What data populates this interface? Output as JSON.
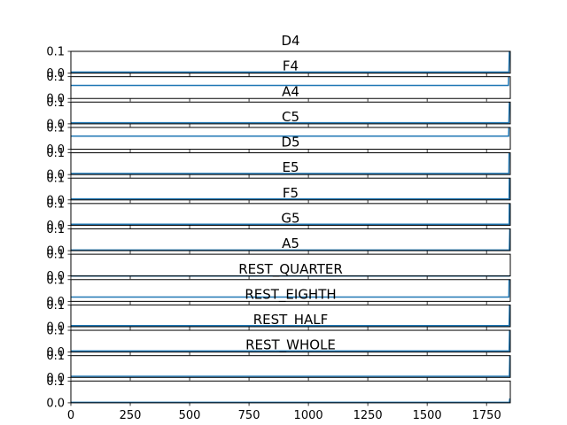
{
  "chart_data": {
    "type": "line",
    "xlim": [
      0,
      1850
    ],
    "x_ticks": [
      0,
      250,
      500,
      750,
      1000,
      1250,
      1500,
      1750
    ],
    "x_tick_labels": [
      "0",
      "250",
      "500",
      "750",
      "1000",
      "1250",
      "1500",
      "1750"
    ],
    "y_tick_labels": [
      "0.0",
      "0.1"
    ],
    "line_color": "#1f77b4",
    "subplots": [
      {
        "title": "D4",
        "ylim": [
          0,
          0.1
        ],
        "series": {
          "x": [
            0,
            1844,
            1846
          ],
          "y": [
            0.005,
            0.005,
            0.1
          ]
        }
      },
      {
        "title": "F4",
        "ylim": [
          0,
          0.1
        ],
        "series": {
          "x": [
            0,
            1842,
            1843
          ],
          "y": [
            0.06,
            0.06,
            0.1
          ]
        }
      },
      {
        "title": "A4",
        "ylim": [
          0,
          0.1
        ],
        "series": {
          "x": [
            0,
            1844,
            1846
          ],
          "y": [
            0.005,
            0.005,
            0.1
          ]
        }
      },
      {
        "title": "C5",
        "ylim": [
          0,
          0.1
        ],
        "series": {
          "x": [
            0,
            1843,
            1844
          ],
          "y": [
            0.06,
            0.06,
            0.1
          ]
        }
      },
      {
        "title": "D5",
        "ylim": [
          0,
          0.1
        ],
        "series": {
          "x": [
            0,
            1844,
            1845
          ],
          "y": [
            0.005,
            0.005,
            0.1
          ]
        }
      },
      {
        "title": "E5",
        "ylim": [
          0,
          0.1
        ],
        "series": {
          "x": [
            0,
            1845,
            1846
          ],
          "y": [
            0.005,
            0.005,
            0.1
          ]
        }
      },
      {
        "title": "F5",
        "ylim": [
          0,
          0.1
        ],
        "series": {
          "x": [
            0,
            1845,
            1846
          ],
          "y": [
            0.005,
            0.005,
            0.1
          ]
        }
      },
      {
        "title": "G5",
        "ylim": [
          0,
          0.1
        ],
        "series": {
          "x": [
            0,
            1846,
            1848
          ],
          "y": [
            0.003,
            0.003,
            0.1
          ]
        }
      },
      {
        "title": "A5",
        "ylim": [
          0,
          0.1
        ],
        "series": {
          "x": [
            0,
            1848
          ],
          "y": [
            0.0,
            0.0
          ]
        }
      },
      {
        "title": "REST_QUARTER",
        "ylim": [
          0,
          0.1
        ],
        "series": {
          "x": [
            0,
            1844,
            1845
          ],
          "y": [
            0.02,
            0.02,
            0.1
          ]
        }
      },
      {
        "title": "REST_EIGHTH",
        "ylim": [
          0,
          0.1
        ],
        "series": {
          "x": [
            0,
            1845,
            1847
          ],
          "y": [
            0.005,
            0.005,
            0.1
          ]
        }
      },
      {
        "title": "REST_HALF",
        "ylim": [
          0,
          0.1
        ],
        "series": {
          "x": [
            0,
            1845,
            1847
          ],
          "y": [
            0.005,
            0.005,
            0.1
          ]
        }
      },
      {
        "title": "REST_WHOLE",
        "ylim": [
          0,
          0.1
        ],
        "series": {
          "x": [
            0,
            1846,
            1848
          ],
          "y": [
            0.005,
            0.005,
            0.1
          ]
        }
      },
      {
        "title": "",
        "ylim": [
          0,
          0.1
        ],
        "series": {
          "x": [
            0,
            1846,
            1848
          ],
          "y": [
            0.002,
            0.002,
            0.02
          ]
        }
      }
    ]
  }
}
